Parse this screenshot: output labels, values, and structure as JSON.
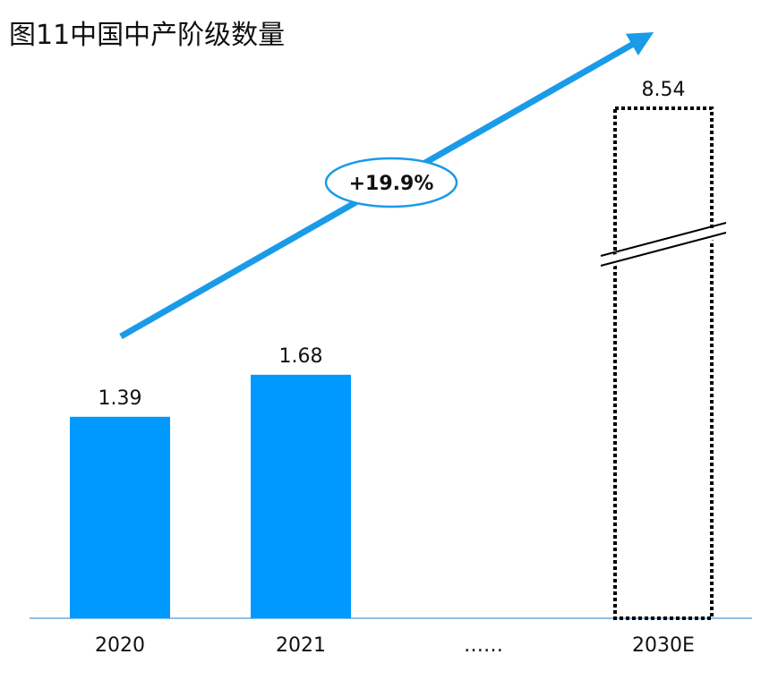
{
  "chart_data": {
    "type": "bar",
    "title": "图11中国中产阶级数量",
    "categories": [
      "2020",
      "2021",
      "……",
      "2030E"
    ],
    "values": [
      1.39,
      1.68,
      null,
      8.54
    ],
    "value_labels": [
      "1.39",
      "1.68",
      "",
      "8.54"
    ],
    "projected": [
      false,
      false,
      false,
      true
    ],
    "axis_break": [
      false,
      false,
      false,
      true
    ],
    "growth_label": "+19.9%",
    "xlabel": "",
    "ylabel": "",
    "grid": false,
    "legend": "none",
    "colors": {
      "bar": "#0099ff",
      "arrow": "#1a9be8",
      "axis": "#6fa8dc",
      "projected_outline": "#000000"
    }
  }
}
